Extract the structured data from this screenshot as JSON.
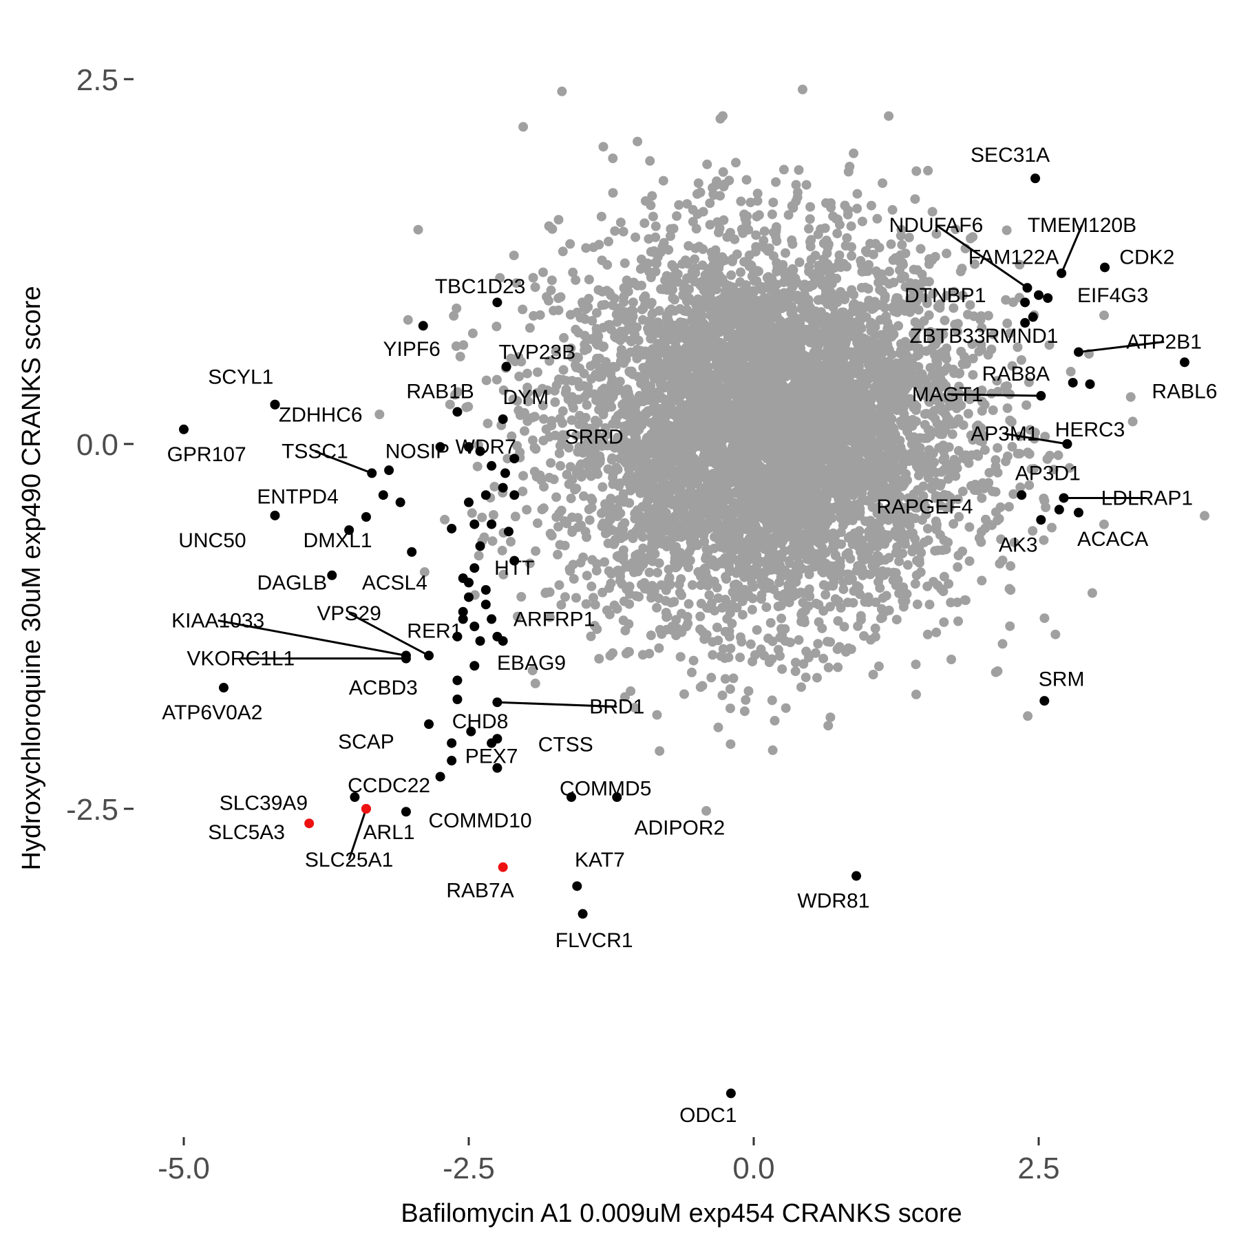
{
  "chart_data": {
    "type": "scatter",
    "xlabel": "Bafilomycin A1 0.009uM exp454 CRANKS score",
    "ylabel": "Hydroxychloroquine 30uM exp490 CRANKS score",
    "xlim": [
      -5.3,
      4.1
    ],
    "ylim": [
      -4.6,
      2.95
    ],
    "x_ticks": [
      -5.0,
      -2.5,
      0.0,
      2.5
    ],
    "x_tick_labels": [
      "-5.0",
      "-2.5",
      "0.0",
      "2.5"
    ],
    "y_ticks": [
      -2.5,
      0.0,
      2.5
    ],
    "y_tick_labels": [
      "-2.5",
      "0.0",
      "2.5"
    ],
    "grid": false,
    "background_cloud": {
      "color": "#a0a0a0",
      "center": [
        0.1,
        0.1
      ],
      "spread_x": 0.9,
      "spread_y": 0.65,
      "correlation": 0.0
    },
    "colors": {
      "background": "#a0a0a0",
      "highlight": "#000000",
      "red": "#ee1111"
    },
    "highlighted": [
      {
        "name": "SEC31A",
        "x": 2.47,
        "y": 1.82,
        "label_x": 2.25,
        "label_y": 1.98
      },
      {
        "name": "NDUFAF6",
        "x": 2.4,
        "y": 1.07,
        "label_x": 1.6,
        "label_y": 1.5,
        "leader": true
      },
      {
        "name": "TMEM120B",
        "x": 2.7,
        "y": 1.17,
        "label_x": 2.88,
        "label_y": 1.5,
        "leader": true
      },
      {
        "name": "CDK2",
        "x": 3.08,
        "y": 1.21,
        "label_x": 3.45,
        "label_y": 1.28
      },
      {
        "name": "FAM122A",
        "x": 2.58,
        "y": 1.0,
        "label_x": 2.28,
        "label_y": 1.28
      },
      {
        "name": "EIF4G3",
        "x": 2.5,
        "y": 1.02,
        "label_x": 3.15,
        "label_y": 1.02
      },
      {
        "name": "DTNBP1",
        "x": 2.38,
        "y": 0.97,
        "label_x": 1.68,
        "label_y": 1.02
      },
      {
        "name": "RMND1",
        "x": 2.45,
        "y": 0.87,
        "label_x": 2.35,
        "label_y": 0.74
      },
      {
        "name": "ZBTB33",
        "x": 2.38,
        "y": 0.83,
        "label_x": 1.7,
        "label_y": 0.74
      },
      {
        "name": "ATP2B1",
        "x": 2.85,
        "y": 0.63,
        "label_x": 3.6,
        "label_y": 0.7,
        "leader": true
      },
      {
        "name": "RABL6",
        "x": 3.78,
        "y": 0.56,
        "label_x": 3.78,
        "label_y": 0.36
      },
      {
        "name": "RAB8A",
        "x": 2.8,
        "y": 0.42,
        "label_x": 2.3,
        "label_y": 0.48
      },
      {
        "name": "RAB8A-2",
        "x": 2.95,
        "y": 0.41,
        "label_x": null,
        "label_y": null
      },
      {
        "name": "MAGT1",
        "x": 2.52,
        "y": 0.33,
        "label_x": 1.7,
        "label_y": 0.34,
        "leader": true
      },
      {
        "name": "HERC3",
        "x": 2.75,
        "y": 0.0,
        "label_x": 2.95,
        "label_y": 0.1
      },
      {
        "name": "AP3M1",
        "x": 2.75,
        "y": 0.0,
        "label_x": 2.2,
        "label_y": 0.07,
        "leader": true
      },
      {
        "name": "AP3D1",
        "x": 2.35,
        "y": -0.35,
        "label_x": 2.58,
        "label_y": -0.2
      },
      {
        "name": "LDLRAP1",
        "x": 2.72,
        "y": -0.37,
        "label_x": 3.45,
        "label_y": -0.37,
        "leader": true
      },
      {
        "name": "RAPGEF4",
        "x": 2.52,
        "y": -0.52,
        "label_x": 1.5,
        "label_y": -0.43
      },
      {
        "name": "ACACA",
        "x": 2.85,
        "y": -0.47,
        "label_x": 3.15,
        "label_y": -0.65
      },
      {
        "name": "AK3",
        "x": 2.68,
        "y": -0.45,
        "label_x": 2.32,
        "label_y": -0.69
      },
      {
        "name": "SRM",
        "x": 2.55,
        "y": -1.76,
        "label_x": 2.7,
        "label_y": -1.61
      },
      {
        "name": "WDR81",
        "x": 0.9,
        "y": -2.96,
        "label_x": 0.7,
        "label_y": -3.13
      },
      {
        "name": "ODC1",
        "x": -0.2,
        "y": -4.45,
        "label_x": -0.4,
        "label_y": -4.6
      },
      {
        "name": "TBC1D23",
        "x": -2.25,
        "y": 0.97,
        "label_x": -2.4,
        "label_y": 1.08
      },
      {
        "name": "YIPF6",
        "x": -2.9,
        "y": 0.81,
        "label_x": -3.0,
        "label_y": 0.65
      },
      {
        "name": "TVP23B",
        "x": -2.17,
        "y": 0.53,
        "label_x": -1.9,
        "label_y": 0.63
      },
      {
        "name": "SCYL1",
        "x": -4.2,
        "y": 0.27,
        "label_x": -4.5,
        "label_y": 0.46
      },
      {
        "name": "RAB1B",
        "x": -2.6,
        "y": 0.22,
        "label_x": -2.75,
        "label_y": 0.36
      },
      {
        "name": "DYM",
        "x": -2.2,
        "y": 0.17,
        "label_x": -2.0,
        "label_y": 0.32
      },
      {
        "name": "ZDHHC6",
        "x": -4.2,
        "y": 0.27,
        "label_x": -3.8,
        "label_y": 0.2
      },
      {
        "name": "GPR107",
        "x": -5.0,
        "y": 0.1,
        "label_x": -4.8,
        "label_y": -0.07
      },
      {
        "name": "WDR7",
        "x": -2.4,
        "y": -0.05,
        "label_x": -2.35,
        "label_y": -0.02
      },
      {
        "name": "SRRD",
        "x": -2.1,
        "y": -0.1,
        "label_x": -1.4,
        "label_y": 0.05
      },
      {
        "name": "TSSC1",
        "x": -3.35,
        "y": -0.2,
        "label_x": -3.85,
        "label_y": -0.05,
        "leader": true
      },
      {
        "name": "NOSIP",
        "x": -3.2,
        "y": -0.18,
        "label_x": -2.95,
        "label_y": -0.05
      },
      {
        "name": "ENTPD4",
        "x": -4.2,
        "y": -0.49,
        "label_x": -4.0,
        "label_y": -0.36
      },
      {
        "name": "UNC50",
        "x": -3.55,
        "y": -0.59,
        "label_x": -4.75,
        "label_y": -0.66
      },
      {
        "name": "DMXL1",
        "x": -3.0,
        "y": -0.74,
        "label_x": -3.65,
        "label_y": -0.66
      },
      {
        "name": "DAGLB",
        "x": -3.7,
        "y": -0.9,
        "label_x": -4.05,
        "label_y": -0.95
      },
      {
        "name": "ACSL4",
        "x": -2.55,
        "y": -0.92,
        "label_x": -3.15,
        "label_y": -0.95
      },
      {
        "name": "HTT",
        "x": -2.1,
        "y": -0.8,
        "label_x": -2.1,
        "label_y": -0.85
      },
      {
        "name": "KIAA1033",
        "x": -3.05,
        "y": -1.45,
        "label_x": -4.7,
        "label_y": -1.21,
        "leader": true
      },
      {
        "name": "VPS29",
        "x": -2.85,
        "y": -1.45,
        "label_x": -3.55,
        "label_y": -1.16,
        "leader": true
      },
      {
        "name": "RER1",
        "x": -2.6,
        "y": -1.32,
        "label_x": -2.8,
        "label_y": -1.28
      },
      {
        "name": "ARFRP1",
        "x": -2.25,
        "y": -1.32,
        "label_x": -1.75,
        "label_y": -1.2
      },
      {
        "name": "VKORC1L1",
        "x": -3.05,
        "y": -1.47,
        "label_x": -4.5,
        "label_y": -1.47,
        "leader": true
      },
      {
        "name": "EBAG9",
        "x": -2.45,
        "y": -1.52,
        "label_x": -1.95,
        "label_y": -1.5
      },
      {
        "name": "ACBD3",
        "x": -2.6,
        "y": -1.62,
        "label_x": -3.25,
        "label_y": -1.67
      },
      {
        "name": "ATP6V0A2",
        "x": -4.65,
        "y": -1.67,
        "label_x": -4.75,
        "label_y": -1.84
      },
      {
        "name": "BRD1",
        "x": -2.25,
        "y": -1.77,
        "label_x": -1.2,
        "label_y": -1.8,
        "leader": true
      },
      {
        "name": "CHD8",
        "x": -2.48,
        "y": -1.97,
        "label_x": -2.4,
        "label_y": -1.9
      },
      {
        "name": "SCAP",
        "x": -2.85,
        "y": -1.92,
        "label_x": -3.4,
        "label_y": -2.04
      },
      {
        "name": "CTSS",
        "x": -2.25,
        "y": -2.02,
        "label_x": -1.65,
        "label_y": -2.06
      },
      {
        "name": "PEX7",
        "x": -2.25,
        "y": -2.22,
        "label_x": -2.3,
        "label_y": -2.14
      },
      {
        "name": "CCDC22",
        "x": -2.65,
        "y": -2.17,
        "label_x": -3.2,
        "label_y": -2.34
      },
      {
        "name": "COMMD5",
        "x": -1.6,
        "y": -2.42,
        "label_x": -1.3,
        "label_y": -2.36
      },
      {
        "name": "SLC39A9",
        "x": -3.5,
        "y": -2.42,
        "label_x": -4.3,
        "label_y": -2.46
      },
      {
        "name": "ADIPOR2",
        "x": -1.2,
        "y": -2.42,
        "label_x": -0.65,
        "label_y": -2.63
      },
      {
        "name": "COMMD10",
        "x": -3.05,
        "y": -2.52,
        "label_x": -2.4,
        "label_y": -2.58
      },
      {
        "name": "SLC5A3",
        "x": -3.9,
        "y": -2.6,
        "color": "red",
        "label_x": -4.45,
        "label_y": -2.66
      },
      {
        "name": "ARL1",
        "x": -3.4,
        "y": -2.5,
        "color": "red",
        "label_x": -3.2,
        "label_y": -2.66
      },
      {
        "name": "SLC25A1",
        "x": -3.4,
        "y": -2.5,
        "color": "red",
        "label_x": -3.55,
        "label_y": -2.85,
        "leader": true
      },
      {
        "name": "RAB7A",
        "x": -2.2,
        "y": -2.9,
        "color": "red",
        "label_x": -2.4,
        "label_y": -3.06
      },
      {
        "name": "KAT7",
        "x": -1.55,
        "y": -3.03,
        "label_x": -1.35,
        "label_y": -2.85
      },
      {
        "name": "FLVCR1",
        "x": -1.5,
        "y": -3.22,
        "label_x": -1.4,
        "label_y": -3.4
      }
    ],
    "unlabeled_black": [
      [
        -2.3,
        -0.15
      ],
      [
        -2.2,
        -0.3
      ],
      [
        -2.5,
        -0.4
      ],
      [
        -2.65,
        -0.58
      ],
      [
        -2.3,
        -0.55
      ],
      [
        -2.4,
        -0.7
      ],
      [
        -2.5,
        -0.95
      ],
      [
        -2.35,
        -1.0
      ],
      [
        -2.5,
        -1.05
      ],
      [
        -2.35,
        -1.1
      ],
      [
        -2.55,
        -1.2
      ],
      [
        -2.45,
        -1.25
      ],
      [
        -2.2,
        -1.35
      ],
      [
        -2.3,
        -1.2
      ],
      [
        -3.25,
        -0.35
      ],
      [
        -3.1,
        -0.4
      ],
      [
        -3.4,
        -0.5
      ],
      [
        -2.5,
        -0.02
      ],
      [
        -2.75,
        -0.02
      ],
      [
        -2.4,
        -1.35
      ],
      [
        -2.6,
        -1.75
      ],
      [
        -2.1,
        -0.35
      ],
      [
        -2.35,
        -0.35
      ],
      [
        -2.15,
        -0.6
      ],
      [
        -2.55,
        -1.15
      ],
      [
        -2.45,
        -0.55
      ],
      [
        -2.75,
        -2.28
      ],
      [
        -2.3,
        -2.05
      ],
      [
        -2.65,
        -2.05
      ],
      [
        -2.18,
        -0.2
      ],
      [
        -2.45,
        -0.85
      ]
    ]
  }
}
